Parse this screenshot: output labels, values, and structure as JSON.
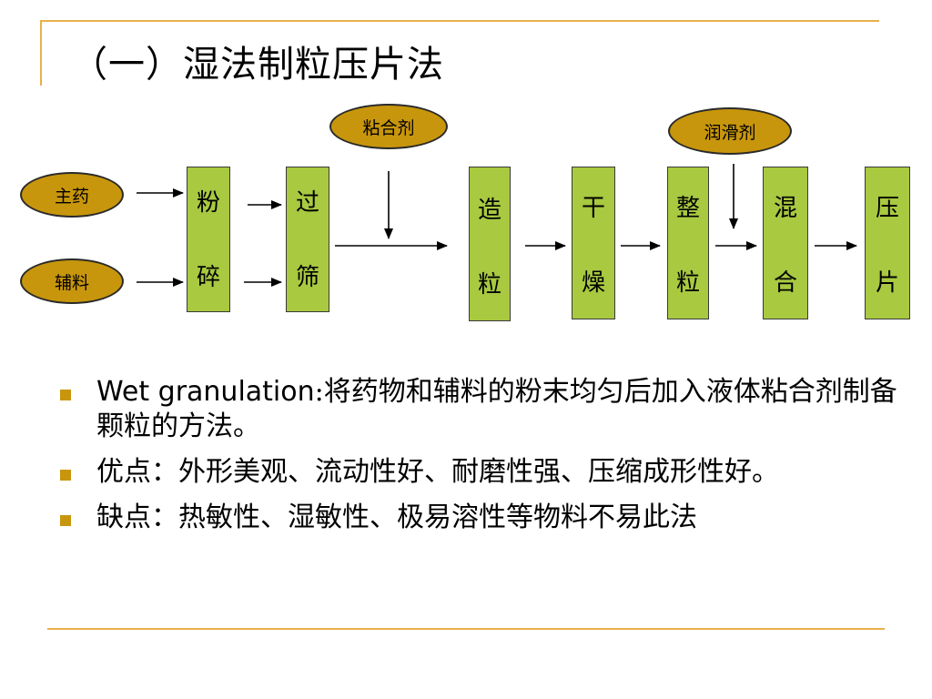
{
  "title": "（一）湿法制粒压片法",
  "ovals": {
    "main_drug": "主药",
    "excipient": "辅料",
    "binder": "粘合剂",
    "lubricant": "润滑剂"
  },
  "steps": [
    {
      "top": "粉",
      "bottom": "碎"
    },
    {
      "top": "过",
      "bottom": "筛"
    },
    {
      "top": "造",
      "bottom": "粒"
    },
    {
      "top": "干",
      "bottom": "燥"
    },
    {
      "top": "整",
      "bottom": "粒"
    },
    {
      "top": "混",
      "bottom": "合"
    },
    {
      "top": "压",
      "bottom": "片"
    }
  ],
  "bullets": [
    {
      "term": "Wet granulation",
      "text": ":将药物和辅料的粉末均匀后加入液体粘合剂制备颗粒的方法。"
    },
    {
      "text": "优点：外形美观、流动性好、耐磨性强、压缩成形性好。"
    },
    {
      "text": "缺点：热敏性、湿敏性、极易溶性等物料不易此法"
    }
  ],
  "colors": {
    "accent_line": "#e8b04a",
    "oval_fill": "#c8960c",
    "box_fill": "#a8c940",
    "bullet": "#c8960c"
  }
}
